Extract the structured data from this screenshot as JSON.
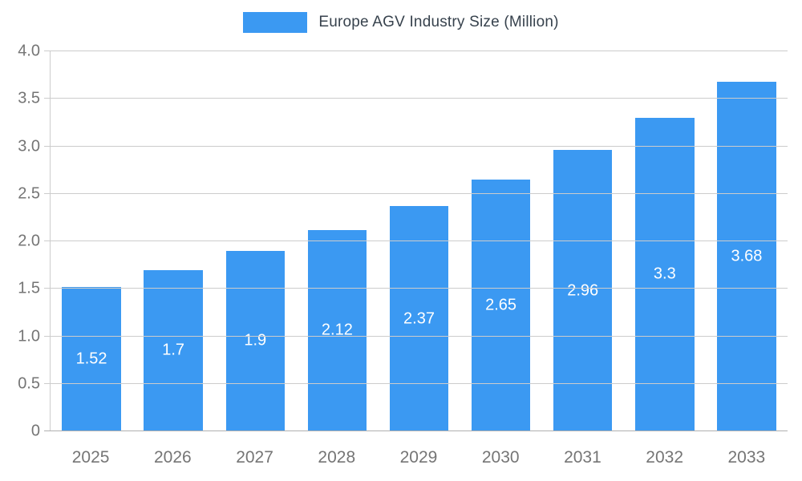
{
  "chart_data": {
    "type": "bar",
    "title": "Europe AGV Industry Size (Million)",
    "categories": [
      "2025",
      "2026",
      "2027",
      "2028",
      "2029",
      "2030",
      "2031",
      "2032",
      "2033"
    ],
    "values": [
      1.52,
      1.7,
      1.9,
      2.12,
      2.37,
      2.65,
      2.96,
      3.3,
      3.68
    ],
    "value_labels": [
      "1.52",
      "1.7",
      "1.9",
      "2.12",
      "2.37",
      "2.65",
      "2.96",
      "3.3",
      "3.68"
    ],
    "xlabel": "",
    "ylabel": "",
    "ylim": [
      0,
      4
    ],
    "yticks": {
      "values": [
        0,
        0.5,
        1,
        1.5,
        2,
        2.5,
        3,
        3.5,
        4
      ],
      "labels": [
        "0",
        "0.5",
        "1.0",
        "1.5",
        "2.0",
        "2.5",
        "3.0",
        "3.5",
        "4.0"
      ]
    },
    "grid": true,
    "legend_position": "top",
    "colors": {
      "bar": "#3B99F2",
      "value_label_text": "#ffffff",
      "axis_text": "#757575",
      "title_text": "#37424d",
      "gridline": "#cccccc"
    }
  }
}
